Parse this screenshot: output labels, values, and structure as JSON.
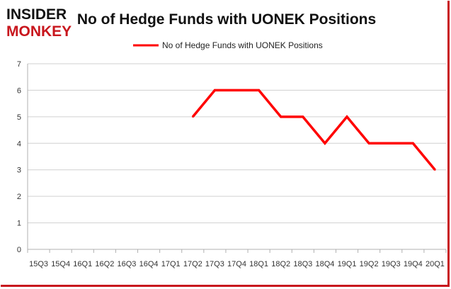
{
  "brand": {
    "line1": "INSIDER",
    "line2": "MONKEY",
    "colors": {
      "black": "#111111",
      "red": "#c8161d"
    }
  },
  "chart_data": {
    "type": "line",
    "title": "No of Hedge Funds with UONEK Positions",
    "xlabel": "",
    "ylabel": "",
    "ylim": [
      0,
      7
    ],
    "yticks": [
      0,
      1,
      2,
      3,
      4,
      5,
      6,
      7
    ],
    "grid": true,
    "legend_position": "top-center",
    "categories": [
      "15Q3",
      "15Q4",
      "16Q1",
      "16Q2",
      "16Q3",
      "16Q4",
      "17Q1",
      "17Q2",
      "17Q3",
      "17Q4",
      "18Q1",
      "18Q2",
      "18Q3",
      "18Q4",
      "19Q1",
      "19Q2",
      "19Q3",
      "19Q4",
      "20Q1"
    ],
    "series": [
      {
        "name": "No of Hedge Funds with UONEK Positions",
        "color": "#ff0000",
        "values": [
          null,
          null,
          null,
          null,
          null,
          null,
          null,
          5,
          6,
          6,
          6,
          5,
          5,
          4,
          5,
          4,
          4,
          4,
          3
        ]
      }
    ]
  }
}
